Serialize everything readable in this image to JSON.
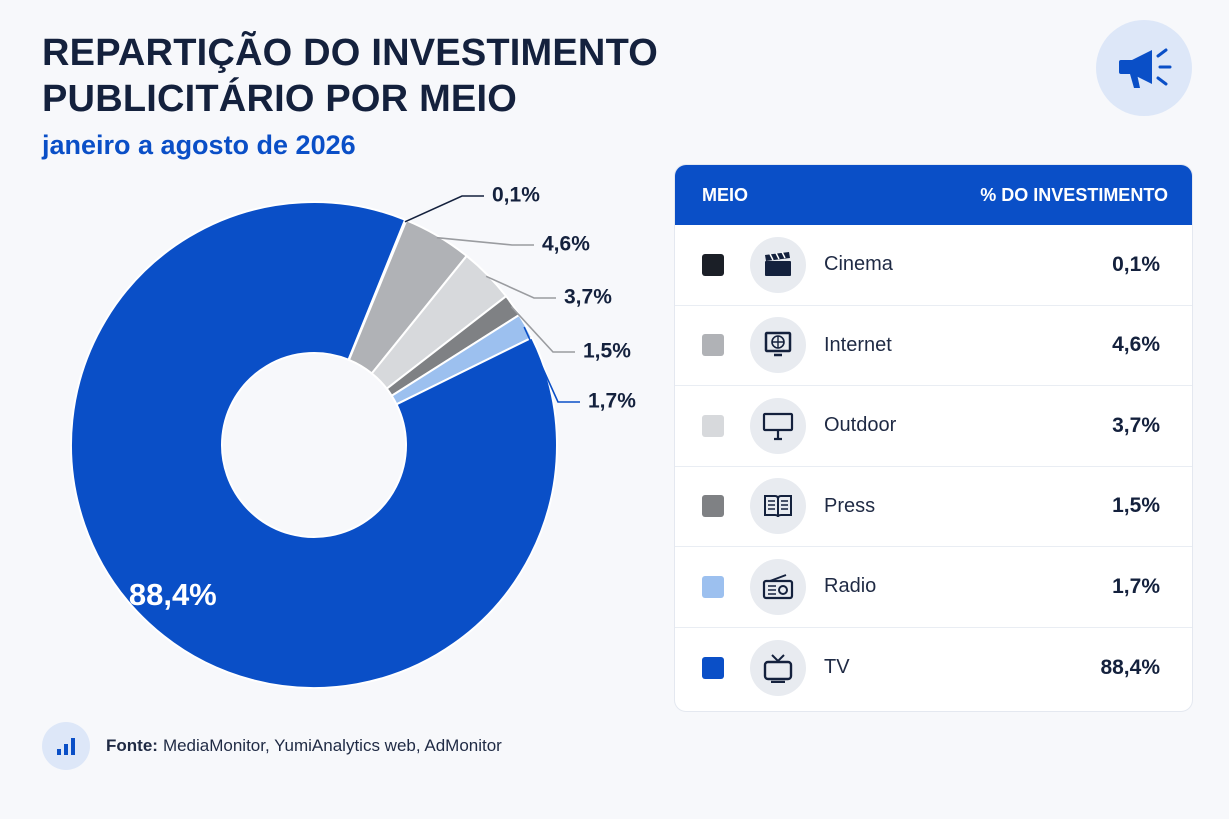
{
  "header": {
    "title_line1": "REPARTIÇÃO DO INVESTIMENTO",
    "title_line2": "PUBLICITÁRIO POR MEIO",
    "subtitle": "janeiro a agosto de 2026",
    "logo_icon": "megaphone-icon"
  },
  "table": {
    "col_media": "MEIO",
    "col_share": "% DO INVESTIMENTO",
    "rows": [
      {
        "label": "Cinema",
        "value": "0,1%",
        "color": "#1b1f27",
        "icon": "clapperboard-icon"
      },
      {
        "label": "Internet",
        "value": "4,6%",
        "color": "#b0b2b6",
        "icon": "globe-monitor-icon"
      },
      {
        "label": "Outdoor",
        "value": "3,7%",
        "color": "#d7d9dc",
        "icon": "billboard-icon"
      },
      {
        "label": "Press",
        "value": "1,5%",
        "color": "#7f8184",
        "icon": "open-book-icon"
      },
      {
        "label": "Radio",
        "value": "1,7%",
        "color": "#9cc0ef",
        "icon": "radio-icon"
      },
      {
        "label": "TV",
        "value": "88,4%",
        "color": "#0a4fc7",
        "icon": "television-icon"
      }
    ]
  },
  "footer": {
    "source_label": "Fonte:",
    "source_text": "MediaMonitor, YumiAnalytics web, AdMonitor",
    "source_icon": "bar-chart-icon"
  },
  "chart_data": {
    "type": "pie",
    "donut": true,
    "categories": [
      "Cinema",
      "Internet",
      "Outdoor",
      "Press",
      "Radio",
      "TV"
    ],
    "values": [
      0.1,
      4.6,
      3.7,
      1.5,
      1.7,
      88.4
    ],
    "labels": [
      "0,1%",
      "4,6%",
      "3,7%",
      "1,5%",
      "1,7%",
      "88,4%"
    ],
    "colors": [
      "#1b1f27",
      "#b0b2b6",
      "#d7d9dc",
      "#7f8184",
      "#9cc0ef",
      "#0a4fc7"
    ],
    "unit": "%",
    "legend": "table-right"
  }
}
